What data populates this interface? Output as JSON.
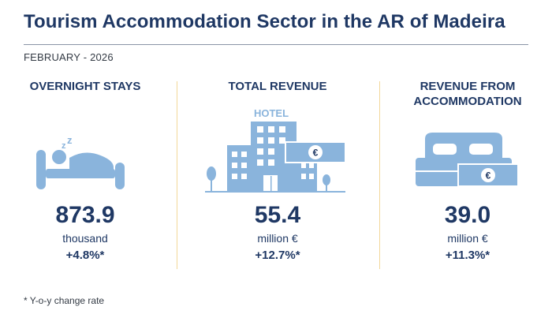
{
  "header": {
    "title": "Tourism Accommodation Sector in the AR of Madeira",
    "period": "FEBRUARY - 2026"
  },
  "indicators": [
    {
      "title": "OVERNIGHT STAYS",
      "value": "873.9",
      "unit": "thousand",
      "change": "+4.8%*",
      "icon": "sleeping-in-bed-icon"
    },
    {
      "title": "TOTAL REVENUE",
      "value": "55.4",
      "unit": "million €",
      "change": "+12.7%*",
      "icon": "hotel-building-icon",
      "icon_text": "HOTEL"
    },
    {
      "title": "REVENUE FROM ACCOMMODATION",
      "value": "39.0",
      "unit": "million €",
      "change": "+11.3%*",
      "icon": "bed-with-banknote-icon"
    }
  ],
  "footnote": "* Y-o-y change rate",
  "colors": {
    "title": "#1f3864",
    "icon": "#8ab4dc",
    "divider": "#f3d89a"
  }
}
